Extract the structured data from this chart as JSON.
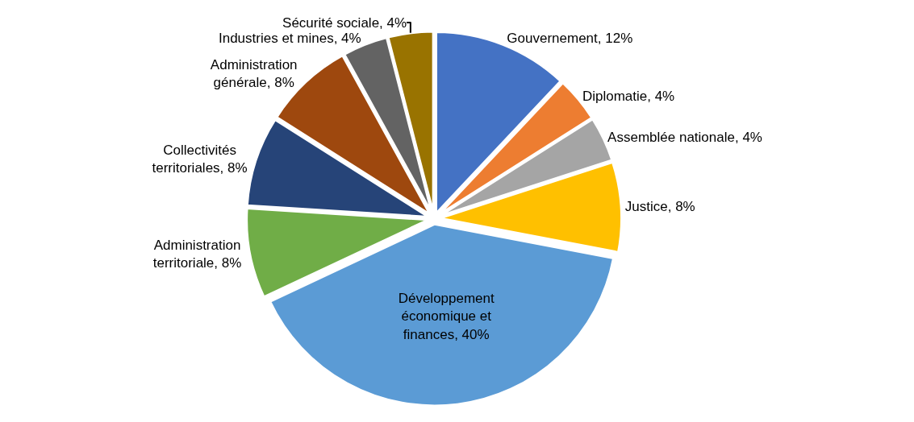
{
  "chart_data": {
    "type": "pie",
    "categories": [
      "Gouvernement",
      "Diplomatie",
      "Assemblée nationale",
      "Justice",
      "Développement économique et finances",
      "Administration territoriale",
      "Collectivités territoriales",
      "Administration générale",
      "Industries et mines",
      "Sécurité sociale"
    ],
    "values": [
      12,
      4,
      4,
      8,
      40,
      8,
      8,
      8,
      4,
      4
    ],
    "value_labels": [
      "12%",
      "4%",
      "4%",
      "8%",
      "40%",
      "8%",
      "8%",
      "8%",
      "4%",
      "4%"
    ],
    "colors": [
      "#4472c4",
      "#ed7d31",
      "#a5a5a5",
      "#ffc000",
      "#5b9bd5",
      "#70ad47",
      "#264478",
      "#9e480e",
      "#636363",
      "#997300"
    ],
    "legend": false
  }
}
